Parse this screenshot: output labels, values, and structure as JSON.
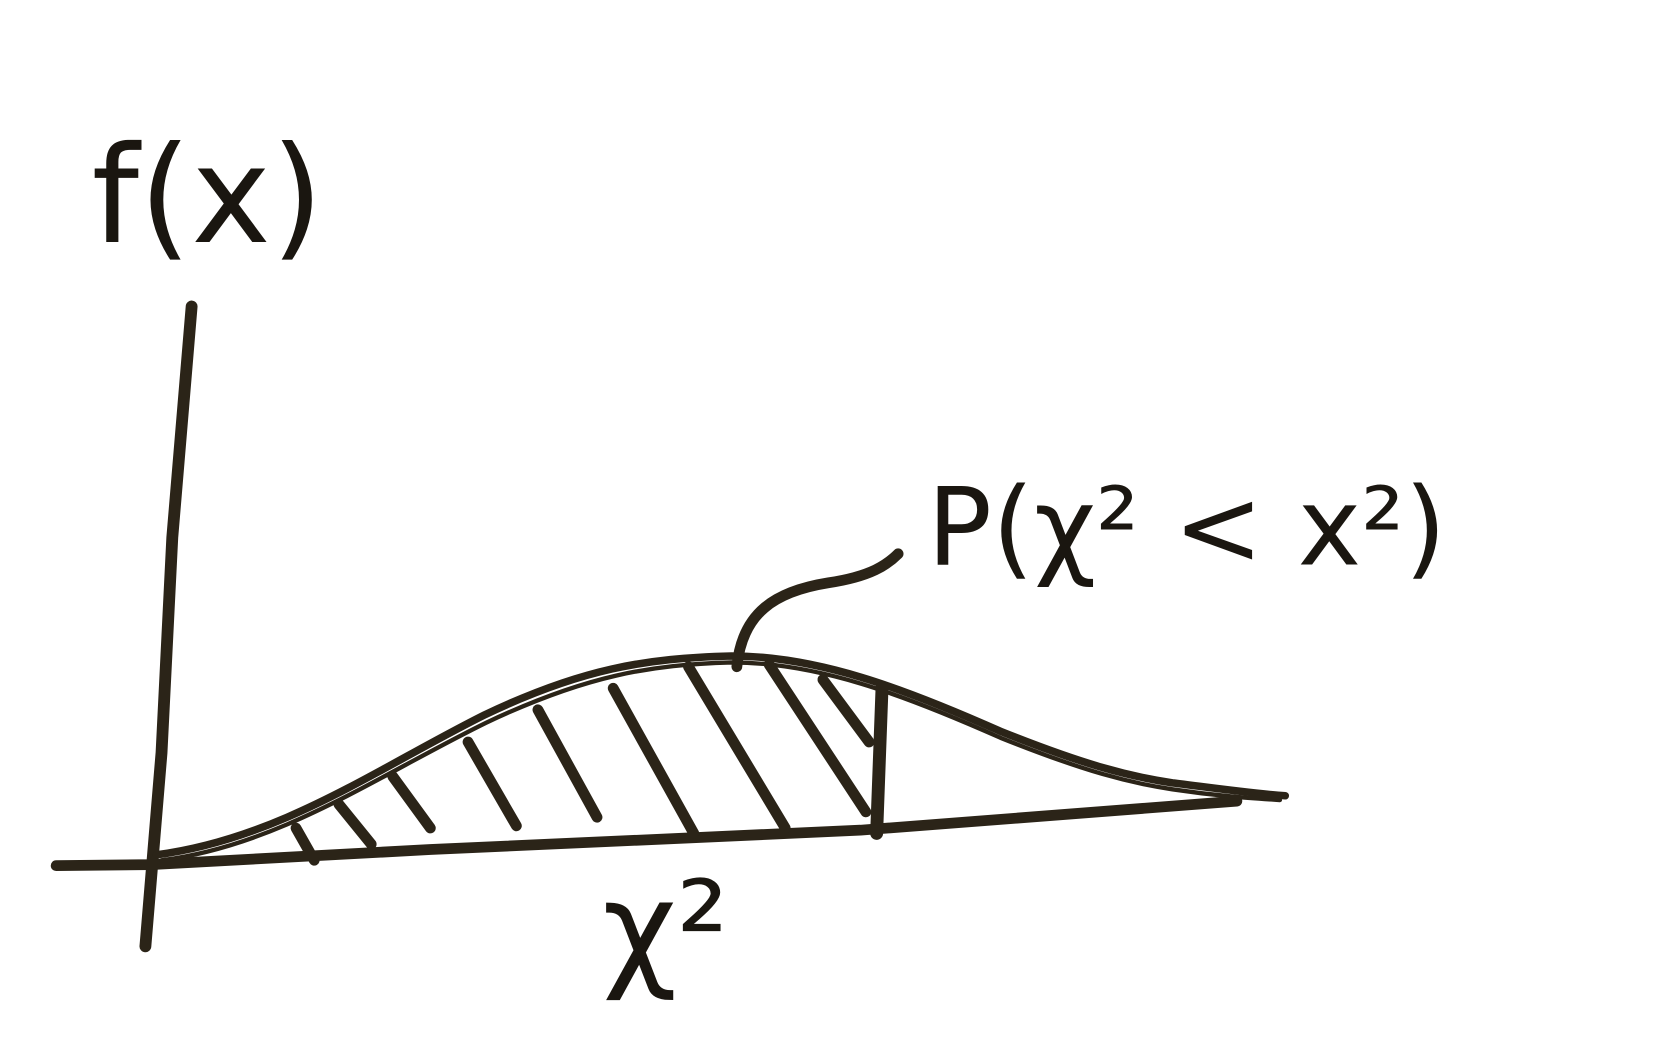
{
  "y_axis_label": "f(x)",
  "x_axis_label": "χ²",
  "annotation": "P(χ² < x²)"
}
